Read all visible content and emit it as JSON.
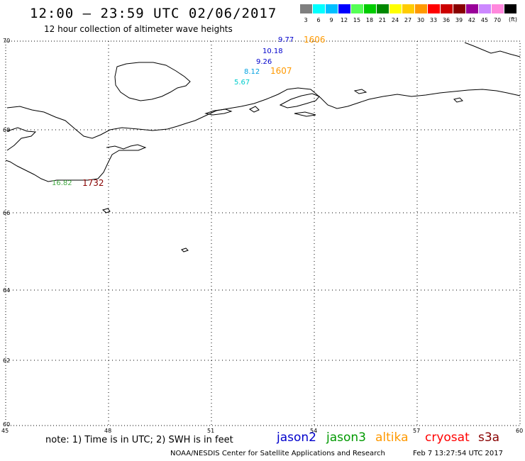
{
  "header": {
    "title": "12:00 – 23:59 UTC 02/06/2017",
    "subtitle": "12 hour collection of altimeter wave heights"
  },
  "color_scale": {
    "unit": "(ft)",
    "items": [
      {
        "label": "3",
        "color": "#7f7f7f"
      },
      {
        "label": "6",
        "color": "#00ffff"
      },
      {
        "label": "9",
        "color": "#00bfff"
      },
      {
        "label": "12",
        "color": "#0000ff"
      },
      {
        "label": "15",
        "color": "#55ff55"
      },
      {
        "label": "18",
        "color": "#00cc00"
      },
      {
        "label": "21",
        "color": "#008800"
      },
      {
        "label": "24",
        "color": "#ffff00"
      },
      {
        "label": "27",
        "color": "#ffcc00"
      },
      {
        "label": "30",
        "color": "#ff9900"
      },
      {
        "label": "33",
        "color": "#ff0000"
      },
      {
        "label": "36",
        "color": "#cc0000"
      },
      {
        "label": "39",
        "color": "#880000"
      },
      {
        "label": "42",
        "color": "#990099"
      },
      {
        "label": "45",
        "color": "#cc88ff"
      },
      {
        "label": "70",
        "color": "#ff88dd"
      },
      {
        "label": "",
        "color": "#000000"
      }
    ]
  },
  "map": {
    "lon_ticks": [
      "45",
      "48",
      "51",
      "54",
      "57",
      "60"
    ],
    "lat_ticks": [
      "70",
      "68",
      "66",
      "64",
      "62",
      "60"
    ],
    "observations": [
      {
        "text": "9.77",
        "color": "#0000cc"
      },
      {
        "text": "1606",
        "color": "#ff9900"
      },
      {
        "text": "10.18",
        "color": "#0000cc"
      },
      {
        "text": "9.26",
        "color": "#0000cc"
      },
      {
        "text": "8.12",
        "color": "#00a0e0"
      },
      {
        "text": "1607",
        "color": "#ff9900"
      },
      {
        "text": "5.67",
        "color": "#00cccc"
      },
      {
        "text": "16.82",
        "color": "#44aa44"
      },
      {
        "text": "1732",
        "color": "#880000"
      }
    ]
  },
  "footer": {
    "note": "note: 1) Time is in UTC; 2) SWH is in feet",
    "satellites": [
      {
        "name": "jason2",
        "color": "#0000cc"
      },
      {
        "name": "jason3",
        "color": "#009900"
      },
      {
        "name": "altika",
        "color": "#ff9900"
      },
      {
        "name": "cryosat",
        "color": "#ff0000"
      },
      {
        "name": "s3a",
        "color": "#880000"
      }
    ],
    "credit": "NOAA/NESDIS Center for Satellite Applications and Research",
    "timestamp": "Feb  7 13:27:54 UTC 2017"
  }
}
